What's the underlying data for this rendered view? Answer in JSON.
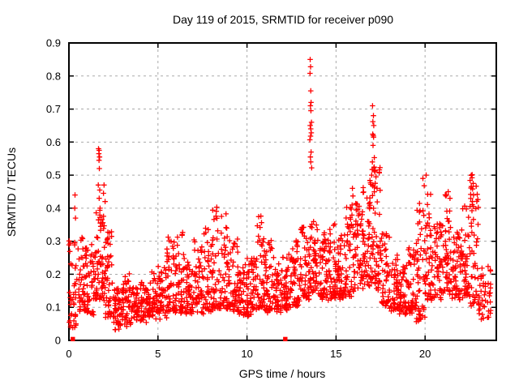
{
  "title": "Day 119 of 2015, SRMTID for receiver p090",
  "chart_data": {
    "type": "scatter",
    "title": "Day 119 of 2015, SRMTID for receiver p090",
    "xlabel": "GPS time / hours",
    "ylabel": "SRMTID / TECUs",
    "xlim": [
      0,
      24
    ],
    "ylim": [
      0,
      0.9
    ],
    "xticks": [
      0,
      5,
      10,
      15,
      20
    ],
    "yticks": [
      0,
      0.1,
      0.2,
      0.3,
      0.4,
      0.5,
      0.6,
      0.7,
      0.8,
      0.9
    ],
    "grid": true,
    "legend": "none",
    "marker": "+",
    "marker_color": "#ff0000",
    "grid_color": "#aaaaaa",
    "border_color": "#000000",
    "background_color": "#ffffff",
    "series_name": "SRMTID",
    "description": "Dense red plus-marker scatter of SRMTID vs GPS time; baseline band ~0.05-0.3 TECUs with spikes near 1.7h (to 0.58), 13.6h (to 0.85), 17.1h (to 0.71), and 22.7h (to 0.49); two filled squares at zero near 0.2h and 12.15h.",
    "seed": 7,
    "cloud_bins": [
      [
        0.0,
        0.5,
        40,
        0.02,
        0.3,
        1.5
      ],
      [
        0.5,
        1.0,
        52,
        0.08,
        0.33,
        1.6
      ],
      [
        1.0,
        1.5,
        46,
        0.07,
        0.28,
        1.5
      ],
      [
        1.5,
        2.0,
        56,
        0.12,
        0.42,
        1.4
      ],
      [
        2.0,
        2.5,
        46,
        0.06,
        0.34,
        1.7
      ],
      [
        2.5,
        3.0,
        50,
        0.03,
        0.15,
        1.2
      ],
      [
        3.0,
        3.5,
        46,
        0.04,
        0.2,
        1.4
      ],
      [
        3.5,
        4.0,
        42,
        0.05,
        0.16,
        1.2
      ],
      [
        4.0,
        4.5,
        46,
        0.05,
        0.17,
        1.3
      ],
      [
        4.5,
        5.0,
        46,
        0.06,
        0.2,
        1.4
      ],
      [
        5.0,
        5.5,
        46,
        0.06,
        0.22,
        1.4
      ],
      [
        5.5,
        6.0,
        50,
        0.08,
        0.3,
        1.6
      ],
      [
        6.0,
        6.5,
        50,
        0.08,
        0.34,
        1.7
      ],
      [
        6.5,
        7.0,
        46,
        0.07,
        0.25,
        1.5
      ],
      [
        7.0,
        7.5,
        46,
        0.08,
        0.3,
        1.6
      ],
      [
        7.5,
        8.0,
        46,
        0.08,
        0.33,
        1.6
      ],
      [
        8.0,
        8.5,
        50,
        0.09,
        0.4,
        1.8
      ],
      [
        8.5,
        9.0,
        50,
        0.09,
        0.38,
        1.7
      ],
      [
        9.0,
        9.5,
        46,
        0.08,
        0.3,
        1.6
      ],
      [
        9.5,
        10.0,
        46,
        0.07,
        0.22,
        1.4
      ],
      [
        10.0,
        10.5,
        46,
        0.07,
        0.25,
        1.5
      ],
      [
        10.5,
        11.0,
        50,
        0.09,
        0.38,
        1.7
      ],
      [
        11.0,
        11.5,
        46,
        0.08,
        0.3,
        1.6
      ],
      [
        11.5,
        12.0,
        46,
        0.08,
        0.22,
        1.4
      ],
      [
        12.0,
        12.5,
        46,
        0.09,
        0.25,
        1.4
      ],
      [
        12.5,
        13.0,
        50,
        0.1,
        0.3,
        1.5
      ],
      [
        13.0,
        13.5,
        50,
        0.12,
        0.34,
        1.5
      ],
      [
        13.5,
        14.0,
        52,
        0.13,
        0.35,
        1.4
      ],
      [
        14.0,
        14.5,
        50,
        0.12,
        0.33,
        1.5
      ],
      [
        14.5,
        15.0,
        50,
        0.12,
        0.35,
        1.5
      ],
      [
        15.0,
        15.5,
        46,
        0.12,
        0.32,
        1.4
      ],
      [
        15.5,
        16.0,
        50,
        0.13,
        0.4,
        1.5
      ],
      [
        16.0,
        16.5,
        50,
        0.14,
        0.42,
        1.4
      ],
      [
        16.5,
        17.0,
        56,
        0.15,
        0.5,
        1.4
      ],
      [
        17.0,
        17.5,
        56,
        0.15,
        0.52,
        1.3
      ],
      [
        17.5,
        18.0,
        46,
        0.1,
        0.32,
        1.5
      ],
      [
        18.0,
        18.5,
        46,
        0.08,
        0.25,
        1.4
      ],
      [
        18.5,
        19.0,
        46,
        0.07,
        0.22,
        1.4
      ],
      [
        19.0,
        19.5,
        46,
        0.08,
        0.28,
        1.5
      ],
      [
        19.5,
        20.0,
        50,
        0.05,
        0.42,
        1.6
      ],
      [
        20.0,
        20.5,
        50,
        0.12,
        0.45,
        1.6
      ],
      [
        20.5,
        21.0,
        46,
        0.12,
        0.35,
        1.5
      ],
      [
        21.0,
        21.5,
        50,
        0.13,
        0.45,
        1.6
      ],
      [
        21.5,
        22.0,
        46,
        0.12,
        0.32,
        1.5
      ],
      [
        22.0,
        22.5,
        50,
        0.12,
        0.4,
        1.5
      ],
      [
        22.5,
        23.0,
        50,
        0.1,
        0.49,
        1.6
      ],
      [
        23.0,
        23.7,
        46,
        0.06,
        0.22,
        1.3
      ]
    ],
    "notable_points": [
      [
        0.02,
        0.055
      ],
      [
        0.34,
        0.44
      ],
      [
        0.33,
        0.4
      ],
      [
        0.37,
        0.37
      ],
      [
        1.66,
        0.58
      ],
      [
        1.7,
        0.575
      ],
      [
        1.68,
        0.565
      ],
      [
        1.72,
        0.555
      ],
      [
        1.69,
        0.545
      ],
      [
        1.71,
        0.52
      ],
      [
        1.65,
        0.47
      ],
      [
        1.73,
        0.455
      ],
      [
        1.7,
        0.43
      ],
      [
        1.75,
        0.4
      ],
      [
        1.97,
        0.47
      ],
      [
        1.94,
        0.445
      ],
      [
        2.03,
        0.42
      ],
      [
        13.55,
        0.85
      ],
      [
        13.57,
        0.828
      ],
      [
        13.54,
        0.808
      ],
      [
        13.58,
        0.755
      ],
      [
        13.6,
        0.72
      ],
      [
        13.56,
        0.71
      ],
      [
        13.59,
        0.695
      ],
      [
        13.62,
        0.66
      ],
      [
        13.55,
        0.65
      ],
      [
        13.58,
        0.64
      ],
      [
        13.61,
        0.628
      ],
      [
        13.57,
        0.618
      ],
      [
        13.53,
        0.607
      ],
      [
        13.6,
        0.57
      ],
      [
        13.56,
        0.555
      ],
      [
        13.58,
        0.54
      ],
      [
        13.63,
        0.522
      ],
      [
        15.92,
        0.46
      ],
      [
        15.95,
        0.437
      ],
      [
        17.05,
        0.71
      ],
      [
        17.1,
        0.68
      ],
      [
        17.07,
        0.662
      ],
      [
        17.12,
        0.65
      ],
      [
        17.06,
        0.624
      ],
      [
        17.09,
        0.62
      ],
      [
        17.11,
        0.615
      ],
      [
        17.08,
        0.59
      ],
      [
        17.15,
        0.553
      ],
      [
        17.04,
        0.54
      ],
      [
        17.13,
        0.522
      ],
      [
        17.18,
        0.51
      ],
      [
        17.0,
        0.5
      ],
      [
        16.96,
        0.472
      ],
      [
        17.24,
        0.495
      ],
      [
        17.3,
        0.46
      ],
      [
        19.88,
        0.49
      ],
      [
        19.95,
        0.468
      ],
      [
        20.06,
        0.5
      ],
      [
        21.3,
        0.45
      ],
      [
        21.4,
        0.43
      ],
      [
        22.64,
        0.492
      ],
      [
        22.7,
        0.475
      ],
      [
        22.67,
        0.458
      ],
      [
        22.72,
        0.44
      ],
      [
        22.66,
        0.42
      ]
    ],
    "zero_squares": [
      [
        0.22,
        0.004
      ],
      [
        12.15,
        0.004
      ]
    ]
  }
}
